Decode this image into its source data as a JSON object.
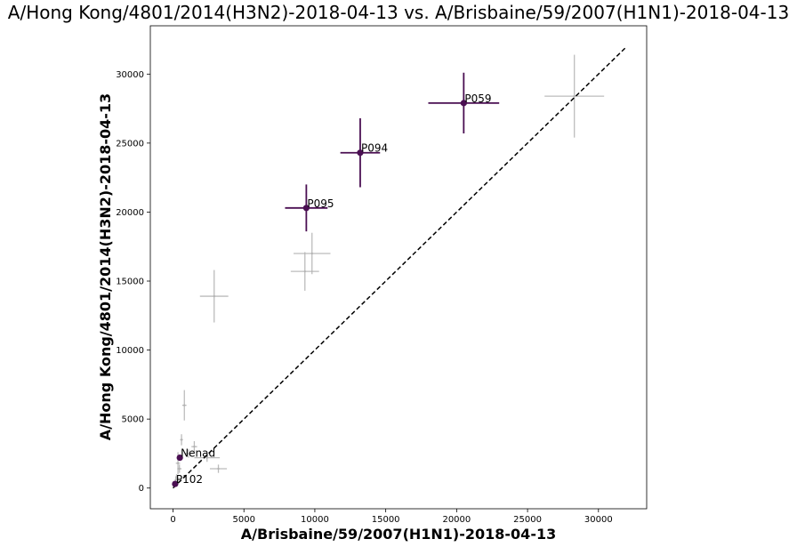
{
  "chart_data": {
    "type": "scatter",
    "title": "A/Hong Kong/4801/2014(H3N2)-2018-04-13 vs. A/Brisbaine/59/2007(H1N1)-2018-04-13",
    "xlabel": "A/Brisbaine/59/2007(H1N1)-2018-04-13",
    "ylabel": "A/Hong Kong/4801/2014(H3N2)-2018-04-13",
    "xlim": [
      -1600,
      33400
    ],
    "ylim": [
      -1500,
      33500
    ],
    "xticks": [
      0,
      5000,
      10000,
      15000,
      20000,
      25000,
      30000
    ],
    "yticks": [
      0,
      5000,
      10000,
      15000,
      20000,
      25000,
      30000
    ],
    "grid": false,
    "reference_line": {
      "x": [
        0,
        31900
      ],
      "y": [
        0,
        31900
      ],
      "style": "dashed",
      "color": "#000000"
    },
    "highlight_color": "#4a0f52",
    "background_color": "#b0b0b0",
    "highlighted": [
      {
        "label": "P059",
        "x": 20500,
        "y": 27900,
        "xerr": 2500,
        "yerr": 2200
      },
      {
        "label": "P094",
        "x": 13200,
        "y": 24300,
        "xerr": 1400,
        "yerr": 2500
      },
      {
        "label": "P095",
        "x": 9400,
        "y": 20300,
        "xerr": 1500,
        "yerr": 1700
      },
      {
        "label": "Nenad",
        "x": 480,
        "y": 2200,
        "xerr": 0,
        "yerr": 0
      },
      {
        "label": "P102",
        "x": 150,
        "y": 300,
        "xerr": 0,
        "yerr": 0
      }
    ],
    "background_points": [
      {
        "x": 28300,
        "y": 28400,
        "xerr": 2100,
        "yerr": 3000
      },
      {
        "x": 9800,
        "y": 17000,
        "xerr": 1300,
        "yerr": 1500
      },
      {
        "x": 9300,
        "y": 15700,
        "xerr": 1000,
        "yerr": 1400
      },
      {
        "x": 2900,
        "y": 13900,
        "xerr": 1000,
        "yerr": 1900
      },
      {
        "x": 800,
        "y": 6000,
        "xerr": 150,
        "yerr": 1100
      },
      {
        "x": 3200,
        "y": 1400,
        "xerr": 600,
        "yerr": 300
      },
      {
        "x": 2400,
        "y": 2200,
        "xerr": 900,
        "yerr": 300
      },
      {
        "x": 1500,
        "y": 3000,
        "xerr": 200,
        "yerr": 400
      },
      {
        "x": 600,
        "y": 3500,
        "xerr": 100,
        "yerr": 400
      },
      {
        "x": 350,
        "y": 1800,
        "xerr": 150,
        "yerr": 800
      },
      {
        "x": 450,
        "y": 1400,
        "xerr": 150,
        "yerr": 300
      },
      {
        "x": 250,
        "y": 800,
        "xerr": 100,
        "yerr": 200
      },
      {
        "x": 200,
        "y": 600,
        "xerr": 80,
        "yerr": 150
      },
      {
        "x": 1100,
        "y": 2500,
        "xerr": 300,
        "yerr": 300
      }
    ]
  }
}
